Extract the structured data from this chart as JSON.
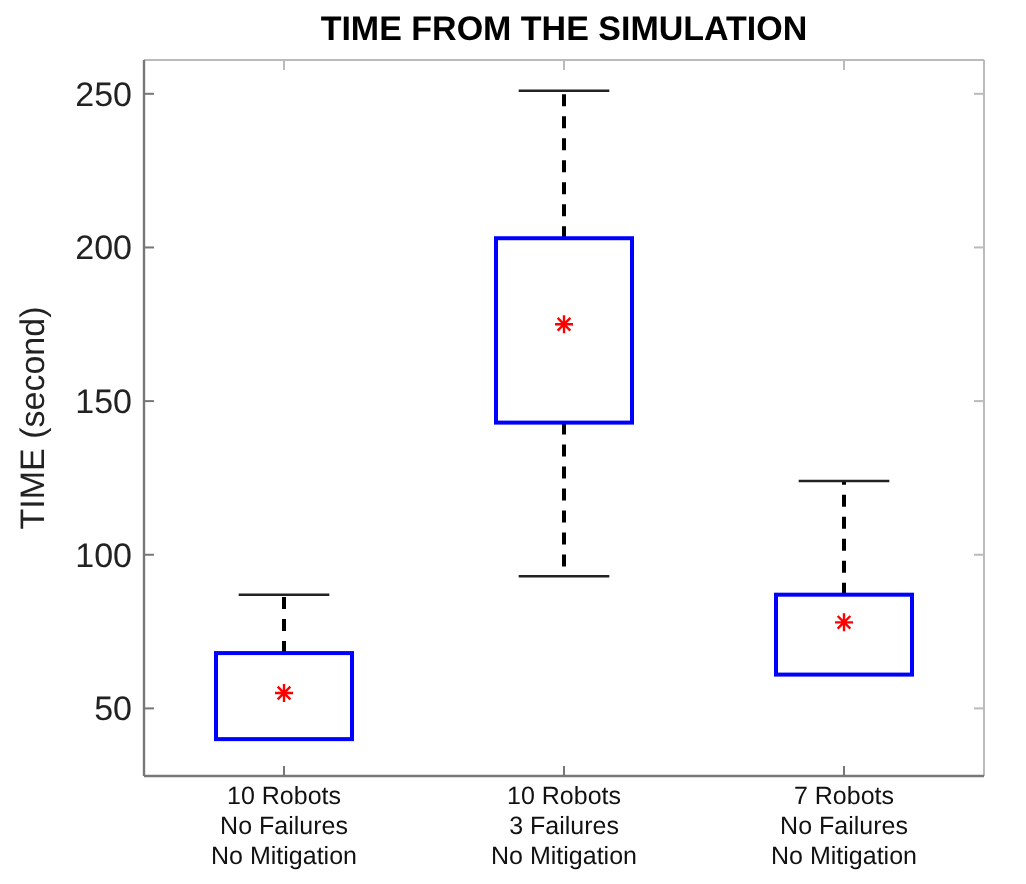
{
  "chart_data": {
    "type": "box",
    "title": "TIME FROM THE SIMULATION",
    "ylabel": "TIME (second)",
    "categories": [
      "10 Robots\nNo Failures\nNo Mitigation",
      "10 Robots\n3 Failures\nNo Mitigation",
      "7 Robots\nNo Failures\nNo Mitigation"
    ],
    "series": [
      {
        "color": "#0000ff",
        "boxes": [
          {
            "low": 40,
            "q1": 40,
            "median": 55,
            "q3": 68,
            "high": 87
          },
          {
            "low": 93,
            "q1": 143,
            "median": 175,
            "q3": 203,
            "high": 251
          },
          {
            "low": 61,
            "q1": 61,
            "median": 78,
            "q3": 87,
            "high": 124
          }
        ]
      }
    ],
    "ylim": [
      28,
      261
    ],
    "yticks": [
      50,
      100,
      150,
      200,
      250
    ],
    "grid": false,
    "marker": "star"
  }
}
